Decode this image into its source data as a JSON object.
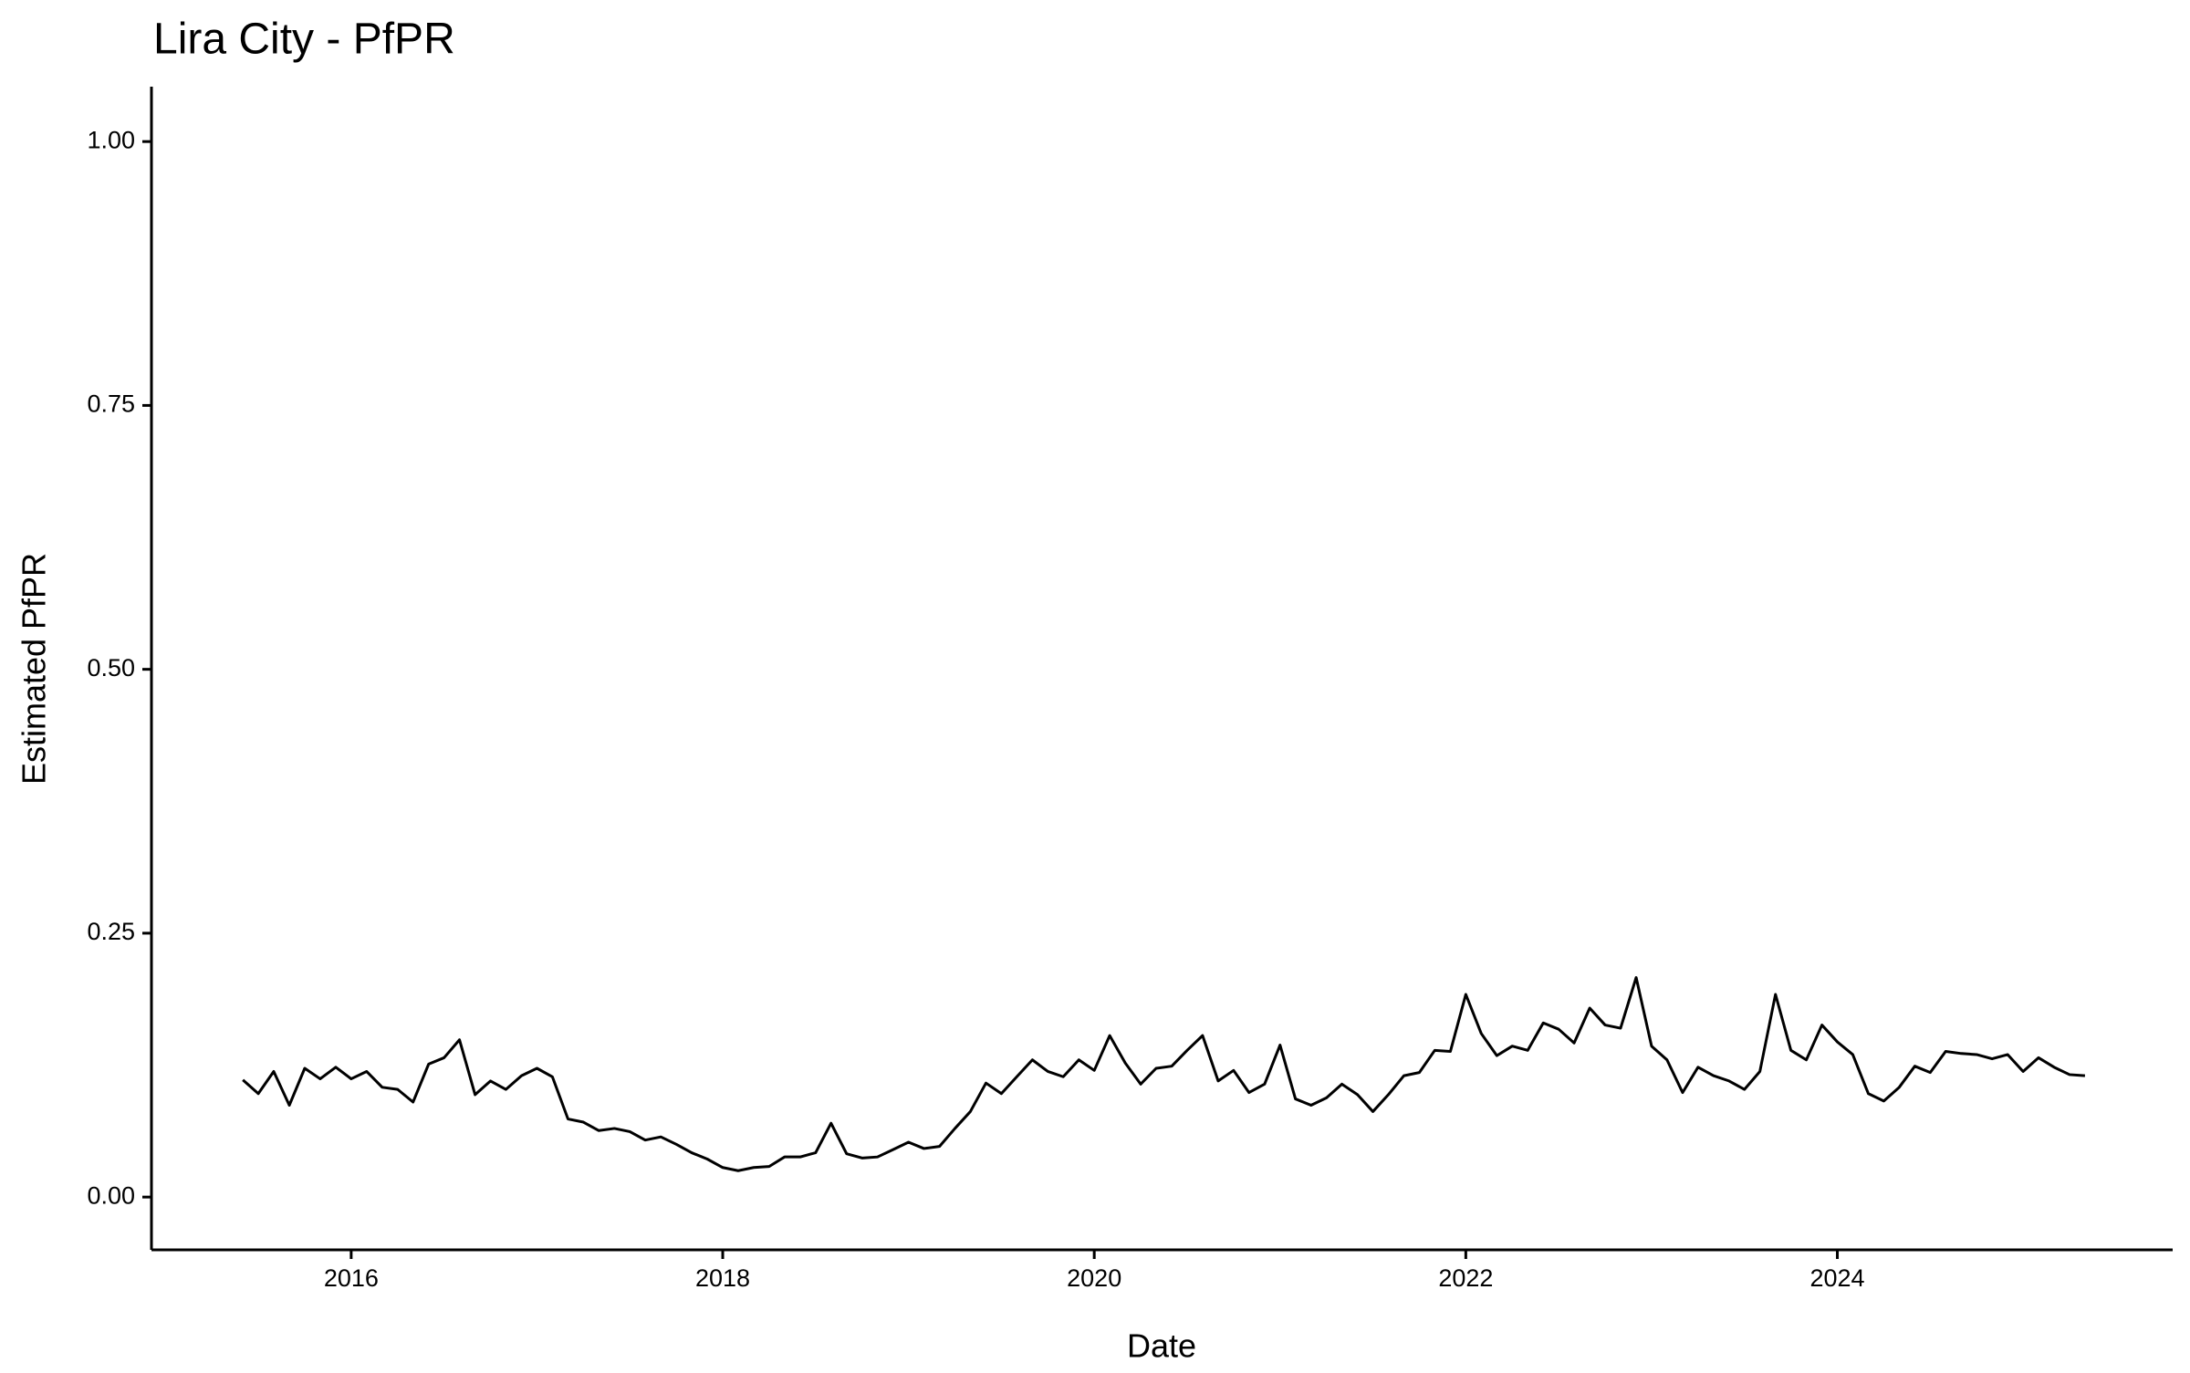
{
  "chart_data": {
    "type": "line",
    "title": "Lira City - PfPR",
    "x_label": "Date",
    "y_label": "Estimated PfPR",
    "x": [
      2015.417,
      2015.5,
      2015.583,
      2015.667,
      2015.75,
      2015.833,
      2015.917,
      2016.0,
      2016.083,
      2016.167,
      2016.25,
      2016.333,
      2016.417,
      2016.5,
      2016.583,
      2016.667,
      2016.75,
      2016.833,
      2016.917,
      2017.0,
      2017.083,
      2017.167,
      2017.25,
      2017.333,
      2017.417,
      2017.5,
      2017.583,
      2017.667,
      2017.75,
      2017.833,
      2017.917,
      2018.0,
      2018.083,
      2018.167,
      2018.25,
      2018.333,
      2018.417,
      2018.5,
      2018.583,
      2018.667,
      2018.75,
      2018.833,
      2018.917,
      2019.0,
      2019.083,
      2019.167,
      2019.25,
      2019.333,
      2019.417,
      2019.5,
      2019.583,
      2019.667,
      2019.75,
      2019.833,
      2019.917,
      2020.0,
      2020.083,
      2020.167,
      2020.25,
      2020.333,
      2020.417,
      2020.5,
      2020.583,
      2020.667,
      2020.75,
      2020.833,
      2020.917,
      2021.0,
      2021.083,
      2021.167,
      2021.25,
      2021.333,
      2021.417,
      2021.5,
      2021.583,
      2021.667,
      2021.75,
      2021.833,
      2021.917,
      2022.0,
      2022.083,
      2022.167,
      2022.25,
      2022.333,
      2022.417,
      2022.5,
      2022.583,
      2022.667,
      2022.75,
      2022.833,
      2022.917,
      2023.0,
      2023.083,
      2023.167,
      2023.25,
      2023.333,
      2023.417,
      2023.5,
      2023.583,
      2023.667,
      2023.75,
      2023.833,
      2023.917,
      2024.0,
      2024.083,
      2024.167,
      2024.25,
      2024.333,
      2024.417,
      2024.5,
      2024.583,
      2024.667,
      2024.75,
      2024.833,
      2024.917,
      2025.0,
      2025.083,
      2025.167,
      2025.25,
      2025.333
    ],
    "series": [
      {
        "color": "#000000",
        "values": [
          0.111,
          0.098,
          0.119,
          0.087,
          0.122,
          0.112,
          0.123,
          0.112,
          0.119,
          0.104,
          0.102,
          0.09,
          0.126,
          0.132,
          0.149,
          0.097,
          0.11,
          0.102,
          0.115,
          0.122,
          0.114,
          0.074,
          0.071,
          0.063,
          0.065,
          0.062,
          0.054,
          0.057,
          0.05,
          0.042,
          0.036,
          0.028,
          0.025,
          0.028,
          0.029,
          0.038,
          0.038,
          0.042,
          0.07,
          0.041,
          0.037,
          0.038,
          0.045,
          0.052,
          0.046,
          0.048,
          0.065,
          0.081,
          0.108,
          0.098,
          0.114,
          0.13,
          0.119,
          0.114,
          0.13,
          0.12,
          0.153,
          0.127,
          0.107,
          0.122,
          0.124,
          0.139,
          0.153,
          0.11,
          0.12,
          0.099,
          0.107,
          0.144,
          0.093,
          0.087,
          0.094,
          0.107,
          0.097,
          0.081,
          0.097,
          0.115,
          0.118,
          0.139,
          0.138,
          0.192,
          0.155,
          0.134,
          0.143,
          0.139,
          0.165,
          0.159,
          0.146,
          0.179,
          0.163,
          0.16,
          0.208,
          0.143,
          0.13,
          0.099,
          0.123,
          0.115,
          0.11,
          0.102,
          0.119,
          0.192,
          0.139,
          0.13,
          0.163,
          0.147,
          0.135,
          0.098,
          0.091,
          0.104,
          0.124,
          0.118,
          0.138,
          0.136,
          0.135,
          0.131,
          0.135,
          0.119,
          0.132,
          0.123,
          0.116,
          0.115
        ]
      }
    ],
    "xlim": [
      2014.925,
      2025.805
    ],
    "xticks": [
      2016,
      2018,
      2020,
      2022,
      2024
    ],
    "ylim": [
      -0.05,
      1.052
    ],
    "yticks": [
      {
        "value": 0,
        "label": "0.00"
      },
      {
        "value": 0.25,
        "label": "0.25"
      },
      {
        "value": 0.5,
        "label": "0.50"
      },
      {
        "value": 0.75,
        "label": "0.75"
      },
      {
        "value": 1,
        "label": "1.00"
      }
    ],
    "grid": false
  }
}
